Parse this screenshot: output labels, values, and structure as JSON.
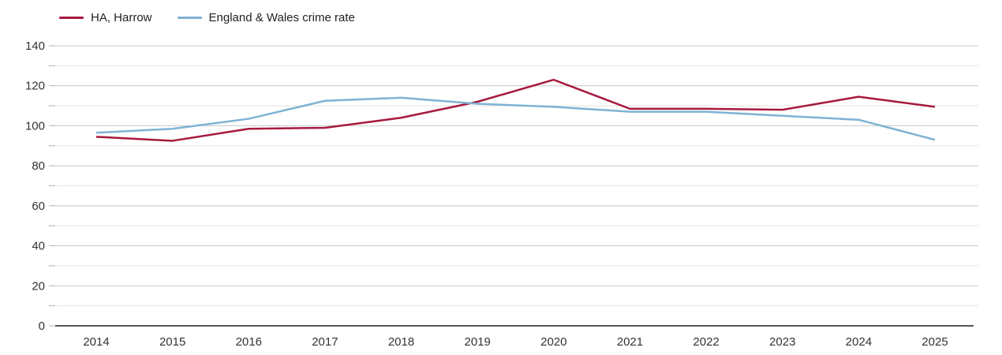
{
  "chart_data": {
    "type": "line",
    "title": "",
    "xlabel": "",
    "ylabel": "",
    "x": [
      2014,
      2015,
      2016,
      2017,
      2018,
      2019,
      2020,
      2021,
      2022,
      2023,
      2024,
      2025
    ],
    "series": [
      {
        "name": "HA, Harrow",
        "color": "#a6193e",
        "values": [
          94.5,
          92.5,
          98.5,
          99,
          104,
          112,
          123,
          108.5,
          108.5,
          108,
          114.5,
          109.5
        ]
      },
      {
        "name": "England & Wales crime rate",
        "color": "#7fb2d4",
        "values": [
          96.5,
          98.5,
          103.5,
          112.5,
          114,
          111,
          109.5,
          107,
          107,
          105,
          103,
          93
        ]
      }
    ],
    "ylim": [
      0,
      140
    ],
    "yticks": [
      0,
      20,
      40,
      60,
      80,
      100,
      120,
      140
    ],
    "ytick_minor_step": 10,
    "grid": "horizontal",
    "legend_position": "top-left"
  },
  "style_colors": {
    "major_gridline": "#c7c7c7",
    "minor_gridline": "#e3e3e3",
    "tick_mark": "#b0b0b0",
    "axis_line": "#1f1f1f",
    "label_text": "#333333"
  }
}
